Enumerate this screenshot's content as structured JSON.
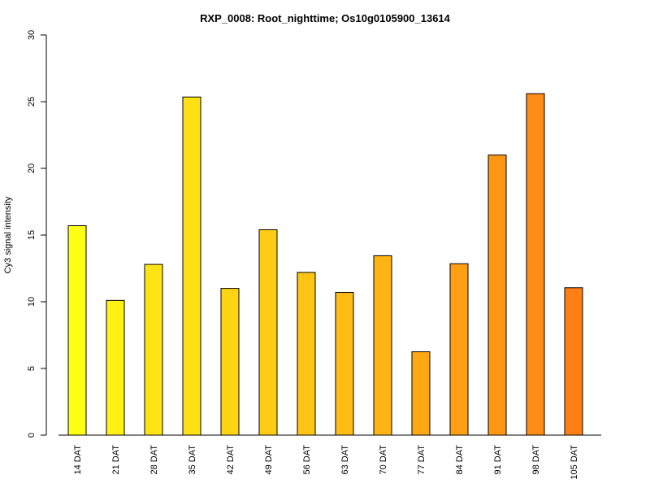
{
  "chart_data": {
    "type": "bar",
    "title": "RXP_0008: Root_nighttime; Os10g0105900_13614",
    "xlabel": "",
    "ylabel": "Cy3 signal intensity",
    "ylim": [
      0,
      30
    ],
    "yticks": [
      0,
      5,
      10,
      15,
      20,
      25,
      30
    ],
    "categories": [
      "14 DAT",
      "21 DAT",
      "28 DAT",
      "35 DAT",
      "42 DAT",
      "49 DAT",
      "56 DAT",
      "63 DAT",
      "70 DAT",
      "77 DAT",
      "84 DAT",
      "91 DAT",
      "98 DAT",
      "105 DAT"
    ],
    "values": [
      15.7,
      10.1,
      12.8,
      25.35,
      11.0,
      15.4,
      12.2,
      10.7,
      13.45,
      6.25,
      12.85,
      21.0,
      25.6,
      11.05
    ],
    "colors": [
      "#FFFF14",
      "#FFF114",
      "#FFE414",
      "#FFE014",
      "#FFD414",
      "#FFCC14",
      "#FFC414",
      "#FFBC14",
      "#FFB414",
      "#FFA814",
      "#FFA014",
      "#FF9614",
      "#FF8C14",
      "#FF7F14"
    ],
    "grid": false,
    "legend": "none"
  }
}
